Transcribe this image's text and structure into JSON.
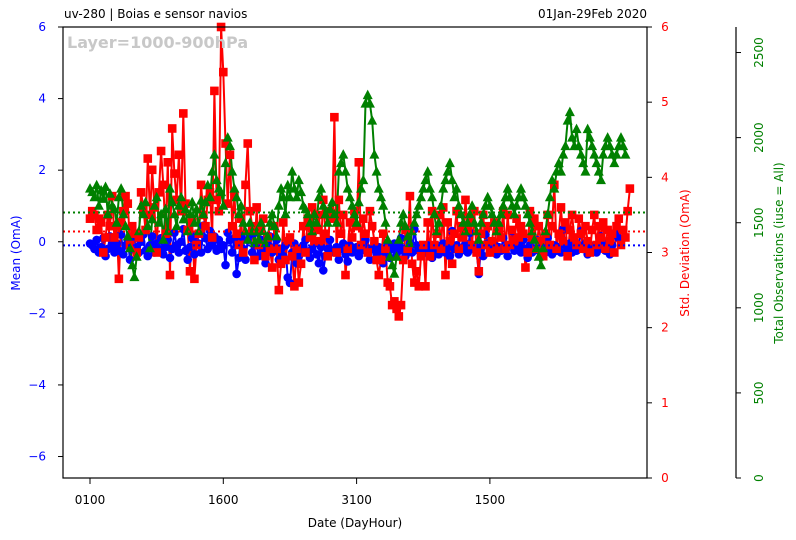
{
  "header": {
    "left": "uv-280  |  Boias e sensor navios",
    "right": "01Jan-29Feb 2020"
  },
  "chart_data": {
    "type": "line",
    "watermark": "Layer=1000-900hPa",
    "xlabel": "Date (DayHour)",
    "x_ticks": [
      "0100",
      "1600",
      "3100",
      "1500"
    ],
    "x_range": [
      0,
      240
    ],
    "x_tick_positions": [
      0,
      60,
      120,
      180
    ],
    "colors": {
      "mean": "#0000ff",
      "std": "#ff0000",
      "count": "#008000"
    },
    "axes": {
      "mean": {
        "label": "Mean (OmA)",
        "range": [
          -6.6,
          6
        ],
        "ticks": [
          -6,
          -4,
          -2,
          0,
          2,
          4,
          6
        ]
      },
      "std": {
        "label": "Std. Deviation (OmA)",
        "range": [
          0,
          6
        ],
        "ticks": [
          0,
          1,
          2,
          3,
          4,
          5,
          6
        ]
      },
      "count": {
        "label": "Total Observations (iuse = All)",
        "range": [
          0,
          2650
        ],
        "ticks": [
          0,
          500,
          1000,
          1500,
          2000,
          2500
        ]
      }
    },
    "reference_lines": {
      "mean_avg": -0.1,
      "std_avg": 3.28,
      "count_avg": 1560
    },
    "series": [
      {
        "name": "Mean (OmA)",
        "axis": "mean",
        "marker": "circle",
        "values": [
          -0.05,
          -0.1,
          -0.2,
          0.05,
          -0.3,
          -0.15,
          0.1,
          -0.4,
          -0.2,
          0.15,
          -0.1,
          -0.3,
          -0.05,
          -0.25,
          0.2,
          -0.35,
          -0.1,
          0.05,
          -0.5,
          -0.2,
          0.1,
          -0.15,
          -0.3,
          0.0,
          0.2,
          -0.25,
          -0.4,
          -0.1,
          0.15,
          -0.3,
          -0.05,
          -0.2,
          0.1,
          -0.35,
          -0.15,
          0.05,
          -0.45,
          -0.2,
          0.25,
          -0.1,
          -0.3,
          0.0,
          0.35,
          -0.25,
          -0.5,
          -0.15,
          0.1,
          -0.35,
          0.2,
          -0.05,
          -0.3,
          0.45,
          0.1,
          -0.2,
          0.3,
          -0.1,
          0.15,
          -0.25,
          0.05,
          -0.2,
          -0.1,
          -0.65,
          0.25,
          0.05,
          -0.3,
          0.1,
          -0.9,
          -0.45,
          0.15,
          -0.2,
          -0.5,
          0.05,
          0.2,
          -0.3,
          0.25,
          -0.1,
          -0.4,
          0.05,
          -0.25,
          -0.6,
          -0.1,
          0.15,
          -0.3,
          -0.15,
          0.05,
          -0.5,
          -0.2,
          -0.4,
          -0.1,
          -1.0,
          -1.15,
          -0.3,
          -0.05,
          -0.6,
          -0.4,
          -0.2,
          -0.1,
          0.05,
          -0.3,
          -0.45,
          -0.2,
          -0.05,
          -0.35,
          -0.6,
          -0.15,
          -0.8,
          -0.4,
          -0.2,
          0.05,
          -0.25,
          -0.3,
          -0.15,
          -0.5,
          -0.2,
          -0.05,
          -0.35,
          -0.55,
          -0.1,
          -0.3,
          -0.2,
          -0.15,
          -0.4,
          -0.25,
          -0.1,
          0.05,
          -0.3,
          -0.5,
          -0.2,
          -0.05,
          -0.35,
          -0.15,
          -0.25,
          -0.6,
          -0.3,
          -0.1,
          -0.45,
          -0.2,
          -0.05,
          -0.35,
          -0.15,
          0.1,
          -0.25,
          -0.4,
          -0.2,
          -0.05,
          -0.3,
          0.35,
          -0.1,
          -0.25,
          -0.4,
          -0.15,
          -0.3,
          -0.1,
          -0.2,
          -0.45,
          -0.25,
          -0.1,
          -0.35,
          -0.2,
          -0.05,
          -0.3,
          -0.15,
          -0.4,
          0.3,
          -0.2,
          -0.1,
          -0.35,
          -0.25,
          -0.15,
          -0.05,
          -0.3,
          0.25,
          -0.2,
          -0.1,
          -0.25,
          -0.9,
          -0.15,
          -0.4,
          0.2,
          -0.05,
          -0.3,
          -0.2,
          -0.1,
          -0.35,
          -0.15,
          -0.25,
          0.1,
          -0.2,
          -0.4,
          -0.1,
          0.3,
          -0.25,
          -0.15,
          -0.05,
          -0.3,
          0.05,
          -0.2,
          -0.45,
          -0.1,
          -0.3,
          -0.2,
          0.05,
          -0.25,
          -0.15,
          -0.05,
          -0.3,
          0.1,
          -0.2,
          -0.35,
          -0.1,
          -0.25,
          -0.15,
          -0.3,
          0.35,
          -0.1,
          -0.2,
          -0.05,
          -0.3,
          -0.15,
          -0.25,
          -0.1,
          0.3,
          -0.2,
          -0.05,
          -0.35,
          -0.15,
          -0.25,
          -0.1,
          -0.3,
          -0.2,
          0.15,
          -0.05,
          -0.25,
          -0.15,
          -0.35,
          -0.1,
          0.2,
          0.3,
          0.1
        ]
      },
      {
        "name": "Std. Deviation (OmA)",
        "axis": "std",
        "marker": "square",
        "values": [
          3.45,
          3.55,
          3.5,
          3.3,
          3.45,
          3.4,
          3.0,
          3.2,
          3.5,
          3.35,
          3.75,
          3.2,
          3.35,
          2.65,
          3.4,
          3.55,
          3.75,
          3.65,
          3.1,
          3.35,
          3.25,
          3.0,
          3.2,
          3.8,
          3.6,
          3.3,
          4.25,
          3.5,
          4.1,
          3.6,
          3.0,
          3.8,
          4.35,
          3.9,
          3.25,
          4.2,
          2.7,
          4.65,
          4.05,
          3.7,
          4.3,
          3.55,
          4.85,
          3.65,
          3.3,
          2.75,
          3.4,
          2.65,
          3.1,
          3.25,
          3.9,
          3.5,
          3.35,
          3.7,
          3.8,
          3.2,
          5.15,
          3.7,
          3.55,
          6.0,
          5.4,
          4.45,
          3.65,
          4.3,
          3.35,
          3.75,
          3.25,
          3.1,
          3.45,
          3.0,
          3.9,
          4.45,
          3.55,
          3.35,
          2.9,
          3.6,
          3.1,
          3.3,
          3.45,
          2.95,
          3.2,
          3.05,
          2.8,
          3.35,
          3.05,
          2.5,
          2.85,
          3.4,
          2.9,
          3.15,
          3.2,
          2.95,
          2.55,
          3.05,
          2.6,
          2.85,
          3.35,
          3.0,
          3.45,
          3.2,
          3.6,
          3.15,
          3.3,
          3.5,
          3.15,
          3.7,
          3.25,
          2.95,
          3.55,
          3.45,
          4.8,
          3.0,
          3.7,
          3.25,
          3.5,
          2.7,
          3.05,
          3.4,
          3.2,
          3.55,
          3.35,
          4.2,
          3.1,
          3.45,
          3.25,
          3.0,
          3.55,
          3.35,
          3.15,
          2.9,
          2.7,
          2.9,
          3.25,
          3.05,
          2.6,
          2.55,
          2.3,
          2.35,
          2.25,
          2.15,
          2.3,
          2.9,
          3.3,
          3.05,
          3.75,
          2.85,
          2.6,
          2.75,
          2.55,
          2.95,
          3.1,
          2.55,
          3.4,
          2.95,
          3.55,
          3.1,
          3.25,
          3.5,
          3.05,
          3.6,
          2.7,
          3.4,
          3.15,
          2.85,
          3.25,
          3.55,
          3.05,
          3.35,
          3.2,
          3.7,
          3.3,
          3.45,
          3.1,
          3.55,
          3.0,
          2.75,
          3.25,
          3.5,
          3.1,
          3.35,
          3.0,
          3.15,
          3.4,
          3.05,
          3.3,
          3.2,
          3.55,
          3.05,
          3.5,
          3.1,
          3.3,
          3.15,
          3.45,
          3.2,
          3.35,
          3.25,
          2.8,
          3.0,
          3.55,
          3.2,
          3.45,
          3.05,
          3.35,
          3.15,
          2.95,
          3.25,
          3.5,
          3.1,
          3.35,
          3.9,
          3.05,
          3.25,
          3.6,
          3.15,
          3.4,
          2.95,
          3.3,
          3.5,
          3.2,
          3.1,
          3.45,
          3.25,
          3.05,
          3.35,
          3.15,
          3.0,
          3.3,
          3.5,
          3.1,
          3.35,
          3.2,
          3.4,
          3.05,
          3.3,
          3.15,
          3.25,
          3.0,
          3.35,
          3.45,
          3.1,
          3.3,
          3.2,
          3.55,
          3.85
        ]
      },
      {
        "name": "Total Observations (iuse = All)",
        "axis": "count",
        "marker": "triangle",
        "values": [
          1700,
          1680,
          1650,
          1720,
          1600,
          1690,
          1640,
          1710,
          1550,
          1670,
          1600,
          1580,
          1500,
          1650,
          1700,
          1550,
          1480,
          1420,
          1350,
          1250,
          1180,
          1300,
          1450,
          1600,
          1550,
          1620,
          1480,
          1350,
          1520,
          1600,
          1650,
          1500,
          1550,
          1400,
          1580,
          1450,
          1700,
          1620,
          1550,
          1480,
          1600,
          1650,
          1520,
          1580,
          1450,
          1550,
          1620,
          1500,
          1580,
          1450,
          1630,
          1550,
          1620,
          1720,
          1650,
          1800,
          1900,
          1750,
          1700,
          1680,
          1600,
          1850,
          2000,
          1950,
          1800,
          1700,
          1650,
          1550,
          1600,
          1500,
          1450,
          1400,
          1500,
          1450,
          1380,
          1450,
          1400,
          1500,
          1450,
          1380,
          1420,
          1500,
          1550,
          1480,
          1420,
          1600,
          1700,
          1650,
          1550,
          1720,
          1650,
          1800,
          1700,
          1650,
          1750,
          1680,
          1600,
          1580,
          1550,
          1500,
          1450,
          1550,
          1500,
          1650,
          1700,
          1600,
          1550,
          1500,
          1580,
          1620,
          1550,
          1500,
          1800,
          1850,
          1900,
          1800,
          1700,
          1650,
          1600,
          1550,
          1500,
          1620,
          1700,
          1750,
          2200,
          2250,
          2200,
          2100,
          1900,
          1800,
          1700,
          1650,
          1600,
          1500,
          1400,
          1300,
          1250,
          1200,
          1300,
          1400,
          1500,
          1550,
          1480,
          1420,
          1380,
          1450,
          1500,
          1550,
          1600,
          1650,
          1700,
          1750,
          1800,
          1700,
          1650,
          1550,
          1450,
          1500,
          1600,
          1700,
          1750,
          1800,
          1850,
          1750,
          1650,
          1700,
          1600,
          1550,
          1500,
          1450,
          1500,
          1550,
          1600,
          1500,
          1450,
          1400,
          1500,
          1550,
          1600,
          1650,
          1600,
          1550,
          1500,
          1450,
          1500,
          1550,
          1600,
          1650,
          1700,
          1650,
          1600,
          1550,
          1600,
          1650,
          1700,
          1650,
          1600,
          1550,
          1500,
          1450,
          1400,
          1350,
          1300,
          1250,
          1350,
          1450,
          1550,
          1650,
          1750,
          1700,
          1800,
          1850,
          1800,
          1900,
          1950,
          2100,
          2150,
          2000,
          1950,
          2050,
          1950,
          1900,
          1850,
          1800,
          2050,
          2000,
          1950,
          1900,
          1850,
          1800,
          1750,
          1900,
          1950,
          2000,
          1950,
          1900,
          1850,
          1900,
          1950,
          2000,
          1950,
          1900
        ]
      }
    ]
  }
}
